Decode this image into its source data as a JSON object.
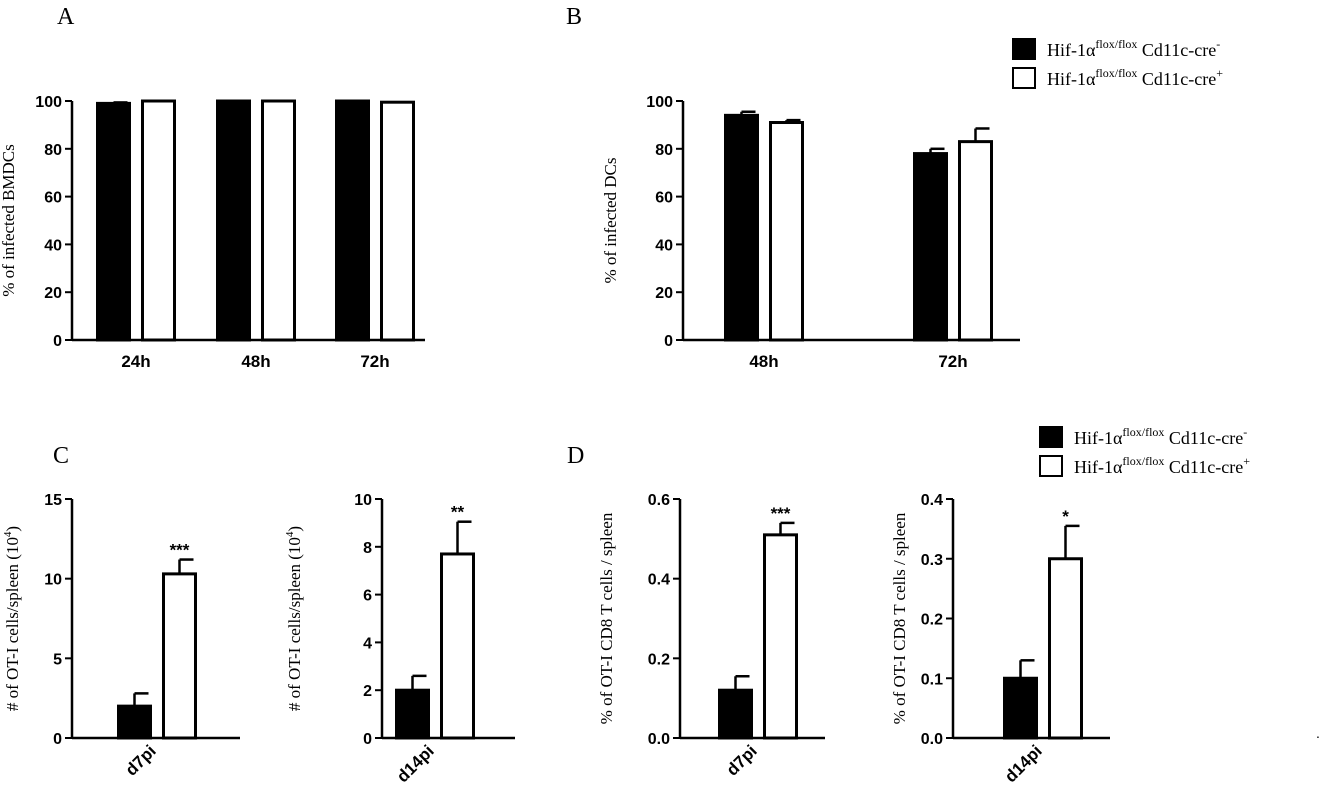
{
  "legend_entries": [
    {
      "base": "Hif-1α",
      "sup": "flox/flox",
      "rest": " Cd11c-cre",
      "sign": "-",
      "fill": "#000000"
    },
    {
      "base": "Hif-1α",
      "sup": "flox/flox",
      "rest": " Cd11c-cre",
      "sign": "+",
      "fill": "#ffffff"
    }
  ],
  "colors": {
    "bar_dark": "#000000",
    "bar_open": "#ffffff",
    "stroke": "#000000"
  },
  "stray_mark": ".",
  "chart_data": [
    {
      "id": "A",
      "panel_label": "A",
      "type": "bar",
      "ylabel": "% of infected BMDCs",
      "ylim": [
        0,
        100
      ],
      "yticks": [
        0,
        20,
        40,
        60,
        80,
        100
      ],
      "categories": [
        "24h",
        "48h",
        "72h"
      ],
      "rotate_categories": false,
      "series": [
        {
          "fill": "#000000",
          "values": [
            99,
            100,
            100
          ],
          "errors": [
            0.4,
            0,
            0
          ]
        },
        {
          "fill": "#ffffff",
          "values": [
            100,
            100,
            99.5
          ],
          "errors": [
            0,
            0,
            0
          ]
        }
      ],
      "significance": []
    },
    {
      "id": "B",
      "panel_label": "B",
      "type": "bar",
      "ylabel": "% of infected DCs",
      "ylim": [
        0,
        100
      ],
      "yticks": [
        0,
        20,
        40,
        60,
        80,
        100
      ],
      "categories": [
        "48h",
        "72h"
      ],
      "rotate_categories": false,
      "series": [
        {
          "fill": "#000000",
          "values": [
            94,
            78
          ],
          "errors": [
            1.5,
            2
          ]
        },
        {
          "fill": "#ffffff",
          "values": [
            91,
            83
          ],
          "errors": [
            1,
            5.5
          ]
        }
      ],
      "significance": []
    },
    {
      "id": "C1",
      "panel_label": "C",
      "type": "bar",
      "ylabel": "# of OT-I cells/spleen (10^4)",
      "ylim": [
        0,
        15
      ],
      "yticks": [
        0,
        5,
        10,
        15
      ],
      "categories": [
        "d7pi"
      ],
      "rotate_categories": true,
      "series": [
        {
          "fill": "#000000",
          "values": [
            2
          ],
          "errors": [
            0.8
          ]
        },
        {
          "fill": "#ffffff",
          "values": [
            10.3
          ],
          "errors": [
            0.9
          ]
        }
      ],
      "significance": [
        "***"
      ]
    },
    {
      "id": "C2",
      "panel_label": "",
      "type": "bar",
      "ylabel": "# of OT-I cells/spleen (10^4)",
      "ylim": [
        0,
        10
      ],
      "yticks": [
        0,
        2,
        4,
        6,
        8,
        10
      ],
      "categories": [
        "d14pi"
      ],
      "rotate_categories": true,
      "series": [
        {
          "fill": "#000000",
          "values": [
            2
          ],
          "errors": [
            0.6
          ]
        },
        {
          "fill": "#ffffff",
          "values": [
            7.7
          ],
          "errors": [
            1.35
          ]
        }
      ],
      "significance": [
        "**"
      ]
    },
    {
      "id": "D1",
      "panel_label": "D",
      "type": "bar",
      "ylabel": "% of OT-I CD8 T cells / spleen",
      "ylim": [
        0,
        0.6
      ],
      "yticks": [
        "0.0",
        "0.2",
        "0.4",
        "0.6"
      ],
      "categories": [
        "d7pi"
      ],
      "rotate_categories": true,
      "series": [
        {
          "fill": "#000000",
          "values": [
            0.12
          ],
          "errors": [
            0.035
          ]
        },
        {
          "fill": "#ffffff",
          "values": [
            0.51
          ],
          "errors": [
            0.03
          ]
        }
      ],
      "significance": [
        "***"
      ]
    },
    {
      "id": "D2",
      "panel_label": "",
      "type": "bar",
      "ylabel": "% of OT-I CD8 T cells / spleen",
      "ylim": [
        0,
        0.4
      ],
      "yticks": [
        "0.0",
        "0.1",
        "0.2",
        "0.3",
        "0.4"
      ],
      "categories": [
        "d14pi"
      ],
      "rotate_categories": true,
      "series": [
        {
          "fill": "#000000",
          "values": [
            0.1
          ],
          "errors": [
            0.03
          ]
        },
        {
          "fill": "#ffffff",
          "values": [
            0.3
          ],
          "errors": [
            0.055
          ]
        }
      ],
      "significance": [
        "*"
      ]
    }
  ]
}
